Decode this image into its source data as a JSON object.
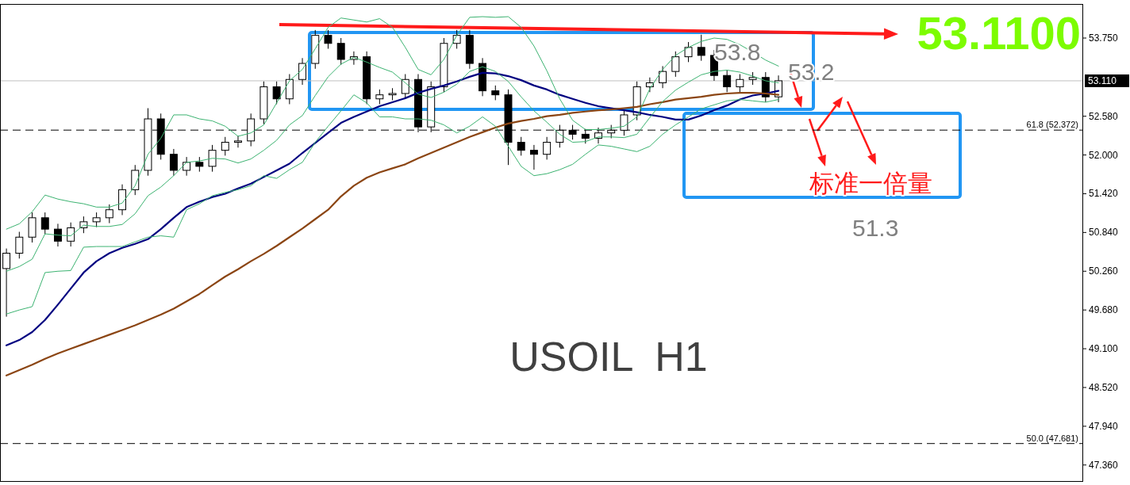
{
  "chart_data": {
    "type": "candlestick",
    "categories": [
      null,
      null,
      null,
      null,
      null,
      null,
      null,
      null,
      null,
      null,
      null,
      null,
      null,
      null,
      null,
      null,
      null,
      null,
      null,
      null,
      null,
      null,
      null,
      null,
      null,
      null,
      null,
      null,
      null,
      null,
      null,
      null,
      null,
      null,
      null,
      null,
      null,
      null,
      null,
      null,
      null,
      null,
      null,
      null,
      null,
      null,
      null,
      null,
      null,
      null,
      null,
      null,
      null,
      null,
      null,
      null,
      null,
      null,
      null,
      null,
      null
    ],
    "ohlc": [
      [
        50.3,
        50.6,
        49.58,
        50.53
      ],
      [
        50.53,
        50.85,
        50.45,
        50.77
      ],
      [
        50.77,
        51.14,
        50.69,
        51.06
      ],
      [
        51.06,
        51.14,
        50.81,
        50.89
      ],
      [
        50.89,
        50.97,
        50.63,
        50.71
      ],
      [
        50.71,
        50.99,
        50.63,
        50.91
      ],
      [
        50.91,
        51.08,
        50.83,
        51.0
      ],
      [
        51.0,
        51.14,
        50.92,
        51.06
      ],
      [
        51.06,
        51.26,
        50.98,
        51.18
      ],
      [
        51.18,
        51.56,
        51.1,
        51.48
      ],
      [
        51.48,
        51.85,
        51.4,
        51.77
      ],
      [
        51.77,
        52.7,
        51.69,
        52.54
      ],
      [
        52.54,
        52.62,
        51.93,
        52.01
      ],
      [
        52.01,
        52.09,
        51.69,
        51.77
      ],
      [
        51.77,
        51.97,
        51.69,
        51.89
      ],
      [
        51.89,
        51.97,
        51.75,
        51.83
      ],
      [
        51.83,
        52.15,
        51.75,
        52.07
      ],
      [
        52.07,
        52.27,
        51.99,
        52.19
      ],
      [
        52.19,
        52.29,
        52.11,
        52.21
      ],
      [
        52.21,
        52.62,
        52.13,
        52.54
      ],
      [
        52.54,
        53.1,
        52.46,
        53.02
      ],
      [
        53.02,
        53.1,
        52.76,
        52.84
      ],
      [
        52.84,
        53.21,
        52.76,
        53.13
      ],
      [
        53.13,
        53.45,
        53.05,
        53.37
      ],
      [
        53.37,
        53.87,
        53.29,
        53.79
      ],
      [
        53.79,
        53.87,
        53.59,
        53.67
      ],
      [
        53.67,
        53.75,
        53.35,
        53.43
      ],
      [
        53.43,
        53.55,
        53.35,
        53.47
      ],
      [
        53.47,
        53.55,
        52.76,
        52.84
      ],
      [
        52.84,
        52.98,
        52.76,
        52.9
      ],
      [
        52.9,
        53.0,
        52.82,
        52.92
      ],
      [
        52.92,
        53.21,
        52.84,
        53.13
      ],
      [
        53.13,
        53.21,
        52.34,
        52.42
      ],
      [
        52.42,
        53.1,
        52.34,
        53.02
      ],
      [
        53.02,
        53.75,
        52.94,
        53.67
      ],
      [
        53.67,
        53.87,
        53.59,
        53.79
      ],
      [
        53.79,
        53.87,
        53.29,
        53.37
      ],
      [
        53.37,
        53.45,
        52.88,
        52.96
      ],
      [
        52.96,
        53.04,
        52.82,
        52.9
      ],
      [
        52.9,
        52.98,
        51.85,
        52.19
      ],
      [
        52.19,
        52.27,
        51.99,
        52.07
      ],
      [
        52.07,
        52.15,
        51.78,
        52.01
      ],
      [
        52.01,
        52.27,
        51.93,
        52.19
      ],
      [
        52.19,
        52.45,
        52.11,
        52.37
      ],
      [
        52.37,
        52.45,
        52.23,
        52.31
      ],
      [
        52.31,
        52.39,
        52.17,
        52.25
      ],
      [
        52.25,
        52.41,
        52.17,
        52.33
      ],
      [
        52.33,
        52.45,
        52.25,
        52.37
      ],
      [
        52.37,
        52.68,
        52.29,
        52.6
      ],
      [
        52.6,
        53.1,
        52.52,
        53.02
      ],
      [
        53.02,
        53.16,
        52.94,
        53.08
      ],
      [
        53.08,
        53.33,
        53.0,
        53.25
      ],
      [
        53.25,
        53.55,
        53.17,
        53.47
      ],
      [
        53.47,
        53.69,
        53.39,
        53.61
      ],
      [
        53.61,
        53.8,
        53.41,
        53.49
      ],
      [
        53.49,
        53.57,
        53.11,
        53.19
      ],
      [
        53.19,
        53.27,
        52.94,
        53.02
      ],
      [
        53.02,
        53.21,
        52.94,
        53.13
      ],
      [
        53.13,
        53.24,
        53.05,
        53.16
      ],
      [
        53.16,
        53.24,
        52.79,
        52.87
      ],
      [
        52.87,
        53.19,
        52.79,
        53.11
      ]
    ],
    "series": [
      {
        "type": "line",
        "color": "#000080",
        "values": [
          49.15,
          49.23,
          49.35,
          49.53,
          49.76,
          50.0,
          50.24,
          50.41,
          50.53,
          50.61,
          50.67,
          50.74,
          50.89,
          51.06,
          51.22,
          51.3,
          51.37,
          51.42,
          51.5,
          51.57,
          51.67,
          51.77,
          51.87,
          52.03,
          52.18,
          52.33,
          52.48,
          52.57,
          52.65,
          52.73,
          52.79,
          52.85,
          52.93,
          52.99,
          53.04,
          53.1,
          53.17,
          53.23,
          53.22,
          53.18,
          53.12,
          53.04,
          52.98,
          52.9,
          52.84,
          52.78,
          52.73,
          52.7,
          52.67,
          52.64,
          52.6,
          52.57,
          52.53,
          52.53,
          52.59,
          52.67,
          52.74,
          52.83,
          52.89,
          52.92,
          52.96
        ]
      },
      {
        "type": "line",
        "color": "#8b4513",
        "values": [
          48.7,
          48.78,
          48.86,
          48.95,
          49.03,
          49.1,
          49.17,
          49.24,
          49.31,
          49.38,
          49.45,
          49.53,
          49.61,
          49.7,
          49.81,
          49.92,
          50.05,
          50.18,
          50.29,
          50.41,
          50.52,
          50.64,
          50.77,
          50.9,
          51.04,
          51.18,
          51.38,
          51.54,
          51.66,
          51.74,
          51.8,
          51.86,
          51.95,
          52.03,
          52.11,
          52.19,
          52.27,
          52.34,
          52.41,
          52.47,
          52.51,
          52.54,
          52.58,
          52.6,
          52.63,
          52.65,
          52.67,
          52.68,
          52.7,
          52.72,
          52.76,
          52.79,
          52.83,
          52.85,
          52.87,
          52.9,
          52.92,
          52.93,
          52.93,
          52.92,
          52.9
        ]
      },
      {
        "type": "line",
        "color": "#3cb371",
        "values": [
          50.89,
          50.97,
          51.15,
          51.4,
          51.34,
          51.3,
          51.27,
          51.22,
          51.22,
          51.28,
          51.54,
          52.01,
          52.25,
          52.6,
          52.6,
          52.54,
          52.51,
          52.43,
          52.28,
          52.33,
          52.45,
          52.78,
          53.11,
          53.28,
          53.59,
          53.91,
          54.05,
          54.02,
          53.99,
          54.04,
          53.91,
          53.61,
          53.28,
          53.2,
          53.43,
          53.79,
          54.06,
          54.07,
          54.06,
          54.07,
          53.91,
          53.63,
          53.26,
          52.84,
          52.52,
          52.38,
          52.38,
          52.4,
          52.43,
          52.57,
          52.99,
          53.28,
          53.49,
          53.61,
          53.7,
          53.75,
          53.73,
          53.65,
          53.54,
          53.42,
          53.33
        ]
      },
      {
        "type": "line",
        "color": "#3cb371",
        "values": [
          50.26,
          50.33,
          50.44,
          50.82,
          50.8,
          50.79,
          50.95,
          50.93,
          50.93,
          50.96,
          51.12,
          51.39,
          51.52,
          51.69,
          51.89,
          51.91,
          51.95,
          51.94,
          51.88,
          51.94,
          52.07,
          52.22,
          52.45,
          52.59,
          52.89,
          53.17,
          53.36,
          53.46,
          53.39,
          53.31,
          53.24,
          53.08,
          52.91,
          52.86,
          52.94,
          53.06,
          53.25,
          53.32,
          53.25,
          53.1,
          52.87,
          52.66,
          52.49,
          52.31,
          52.19,
          52.2,
          52.27,
          52.27,
          52.26,
          52.31,
          52.56,
          52.8,
          52.97,
          53.09,
          53.2,
          53.25,
          53.27,
          53.24,
          53.18,
          53.11,
          53.08
        ]
      },
      {
        "type": "line",
        "color": "#3cb371",
        "values": [
          49.62,
          49.68,
          49.73,
          50.24,
          50.26,
          50.27,
          50.62,
          50.63,
          50.63,
          50.63,
          50.7,
          50.77,
          50.79,
          50.77,
          51.18,
          51.27,
          51.39,
          51.44,
          51.48,
          51.54,
          51.69,
          51.65,
          51.78,
          51.89,
          52.19,
          52.43,
          52.66,
          52.9,
          52.78,
          52.57,
          52.57,
          52.54,
          52.54,
          52.52,
          52.45,
          52.33,
          52.43,
          52.57,
          52.43,
          52.13,
          51.83,
          51.69,
          51.72,
          51.78,
          51.86,
          52.01,
          52.15,
          52.13,
          52.09,
          52.05,
          52.13,
          52.31,
          52.45,
          52.57,
          52.69,
          52.75,
          52.81,
          52.83,
          52.81,
          52.79,
          52.83
        ]
      }
    ],
    "ylim": [
      47.12,
      54.26
    ],
    "yticks": [
      {
        "value": 47.36,
        "label": "47.360"
      },
      {
        "value": 47.94,
        "label": "47.940"
      },
      {
        "value": 48.52,
        "label": "48.520"
      },
      {
        "value": 49.1,
        "label": "49.100"
      },
      {
        "value": 49.68,
        "label": "49.680"
      },
      {
        "value": 50.26,
        "label": "50.260"
      },
      {
        "value": 50.84,
        "label": "50.840"
      },
      {
        "value": 51.42,
        "label": "51.420"
      },
      {
        "value": 52.0,
        "label": "52.000"
      },
      {
        "value": 52.58,
        "label": "52.580"
      },
      {
        "value": 53.75,
        "label": "53.750"
      }
    ],
    "ref_lines": [
      {
        "axis": "y",
        "value": 53.11,
        "label": "53.110",
        "color": "#c0c0c0",
        "line_style": "solid"
      },
      {
        "axis": "y",
        "value": 52.372,
        "label": "61.8 (52.372)",
        "color": "#000000",
        "line_style": "dashed"
      },
      {
        "axis": "y",
        "value": 47.681,
        "label": "50.0 (47.681)",
        "color": "#000000",
        "line_style": "dashed"
      }
    ],
    "annotations": [
      "53.1100",
      "53.8",
      "53.2",
      "51.3",
      "标准一倍量",
      "USOIL  H1"
    ],
    "tick_labels": "y"
  }
}
